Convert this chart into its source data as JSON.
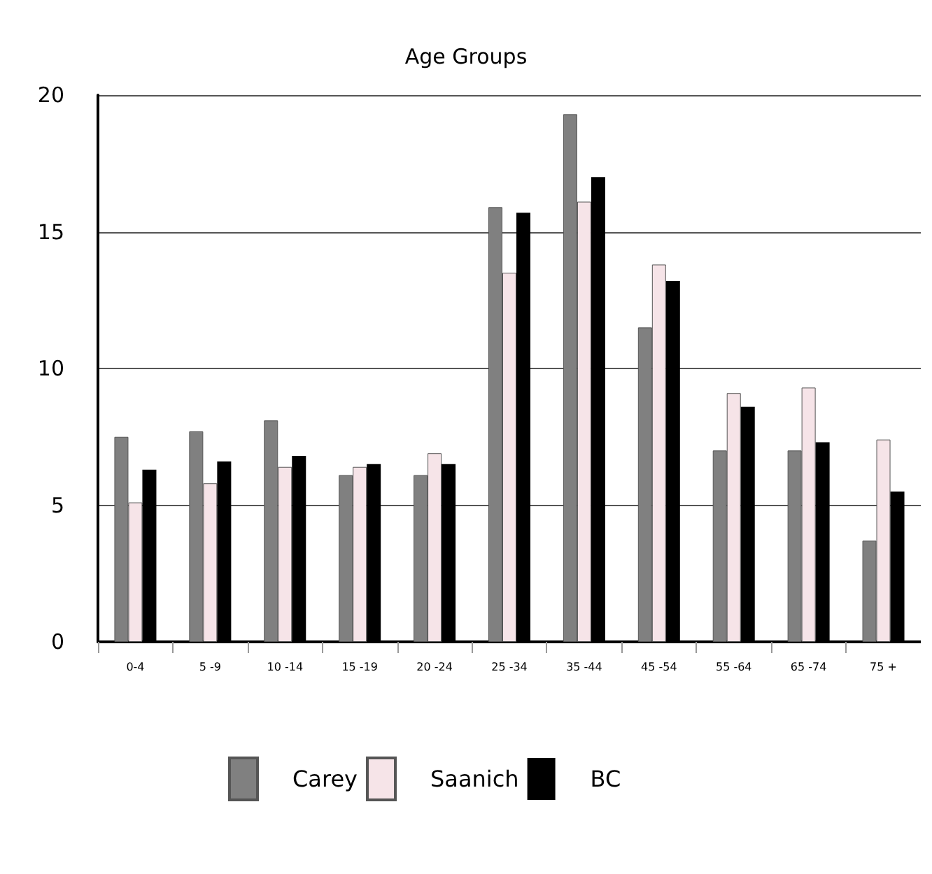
{
  "chart_data": {
    "type": "bar",
    "title": "Age Groups",
    "categories": [
      "0-4",
      "5 -9",
      "10 -14",
      "15 -19",
      "20 -24",
      "25 -34",
      "35 -44",
      "45 -54",
      "55 -64",
      "65 -74",
      "75 +"
    ],
    "series": [
      {
        "name": "Carey",
        "color": "#808080",
        "values": [
          7.5,
          7.7,
          8.1,
          6.1,
          6.1,
          15.9,
          19.3,
          11.5,
          7.0,
          7.0,
          3.7
        ]
      },
      {
        "name": "Saanich",
        "color": "#f6e4e8",
        "values": [
          5.1,
          5.8,
          6.4,
          6.4,
          6.9,
          13.5,
          16.1,
          13.8,
          9.1,
          9.3,
          7.4
        ]
      },
      {
        "name": "BC",
        "color": "#000000",
        "values": [
          6.3,
          6.6,
          6.8,
          6.5,
          6.5,
          15.7,
          17.0,
          13.2,
          8.6,
          7.3,
          5.5
        ]
      }
    ],
    "ylim": [
      0,
      20
    ],
    "yticks": [
      0,
      5,
      10,
      15,
      20
    ],
    "grid": "y",
    "legend": "bottom"
  }
}
